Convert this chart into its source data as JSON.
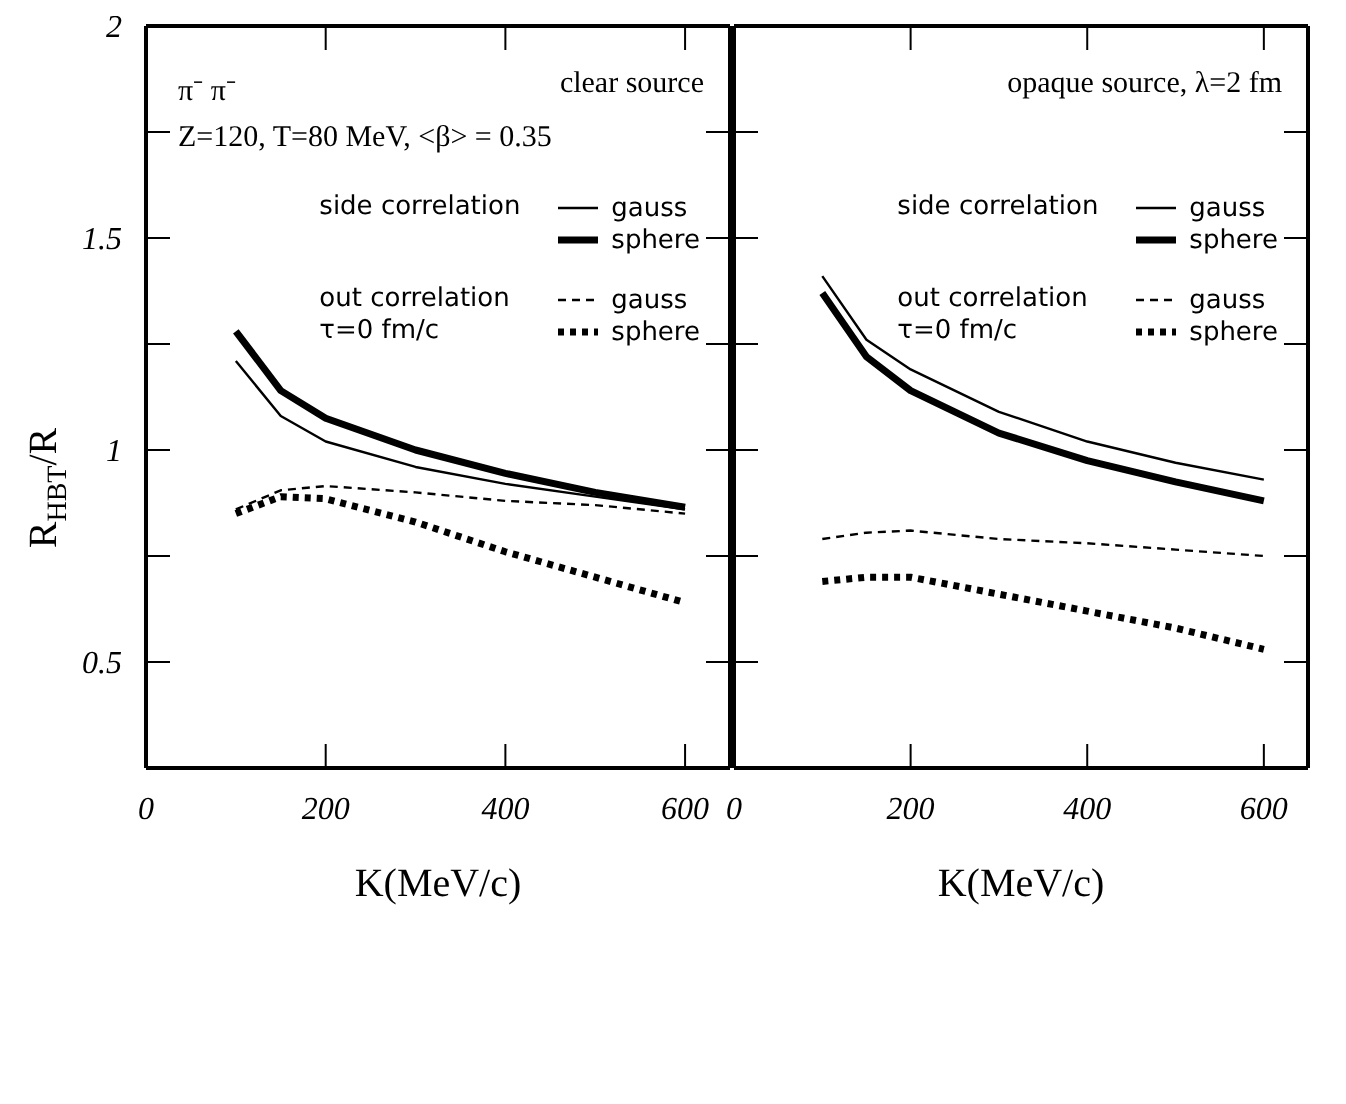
{
  "chart_data": [
    {
      "type": "line",
      "title": "clear source",
      "annotations": [
        "π⁻ π⁻",
        "Z=120,  T=80 MeV,  <β> = 0.35",
        "side correlation",
        "out correlation\nτ=0 fm/c"
      ],
      "xlabel": "K(MeV/c)",
      "ylabel": "R$_{HBT}$/R",
      "x": [
        100,
        150,
        200,
        300,
        400,
        500,
        600
      ],
      "xlim": [
        0,
        650
      ],
      "xticks": [
        0,
        200,
        400,
        600
      ],
      "ylim": [
        0.25,
        2
      ],
      "yticks": [
        0.5,
        {
          "value": 0.75,
          "label": null
        },
        1,
        {
          "value": 1.25,
          "label": null
        },
        1.5,
        {
          "value": 1.75,
          "label": null
        },
        2
      ],
      "legend": "top right",
      "grid": false,
      "marker": "none",
      "series": [
        {
          "name": "gauss",
          "color": "#000000",
          "line_style": "solid",
          "values": [
            1.21,
            1.08,
            1.02,
            0.96,
            0.92,
            0.89,
            0.86
          ]
        },
        {
          "name": "sphere",
          "color": "#000000",
          "line_style": "solid",
          "values": [
            1.28,
            1.14,
            1.075,
            1.0,
            0.945,
            0.9,
            0.865
          ]
        },
        {
          "name": "gauss",
          "color": "#000000",
          "line_style": "dashed",
          "values": [
            0.86,
            0.905,
            0.915,
            0.9,
            0.88,
            0.87,
            0.85
          ]
        },
        {
          "name": "sphere",
          "color": "#000000",
          "line_style": "dotted",
          "values": [
            0.85,
            0.89,
            0.885,
            0.83,
            0.76,
            0.7,
            0.64
          ]
        }
      ]
    },
    {
      "type": "line",
      "title": "opaque source, λ=2 fm",
      "annotations": [
        "side correlation",
        "out correlation\nτ=0 fm/c"
      ],
      "xlabel": "K(MeV/c)",
      "x": [
        100,
        150,
        200,
        300,
        400,
        500,
        600
      ],
      "xlim": [
        0,
        650
      ],
      "xticks": [
        0,
        200,
        400,
        600
      ],
      "ylim": [
        0.25,
        2
      ],
      "yticks": [
        {
          "value": 0.5,
          "label": null
        },
        {
          "value": 0.75,
          "label": null
        },
        {
          "value": 1,
          "label": null
        },
        {
          "value": 1.25,
          "label": null
        },
        {
          "value": 1.5,
          "label": null
        },
        {
          "value": 1.75,
          "label": null
        },
        {
          "value": 2,
          "label": null
        }
      ],
      "tick_labels": "x",
      "legend": "top right",
      "grid": false,
      "marker": "none",
      "series": [
        {
          "name": "gauss",
          "color": "#000000",
          "line_style": "solid",
          "values": [
            1.41,
            1.26,
            1.19,
            1.09,
            1.02,
            0.97,
            0.93
          ]
        },
        {
          "name": "sphere",
          "color": "#000000",
          "line_style": "solid",
          "values": [
            1.37,
            1.22,
            1.14,
            1.04,
            0.975,
            0.925,
            0.88
          ]
        },
        {
          "name": "gauss",
          "color": "#000000",
          "line_style": "dashed",
          "values": [
            0.79,
            0.805,
            0.81,
            0.79,
            0.78,
            0.765,
            0.75
          ]
        },
        {
          "name": "sphere",
          "color": "#000000",
          "line_style": "dotted",
          "values": [
            0.69,
            0.7,
            0.7,
            0.66,
            0.62,
            0.58,
            0.53
          ]
        }
      ]
    }
  ]
}
